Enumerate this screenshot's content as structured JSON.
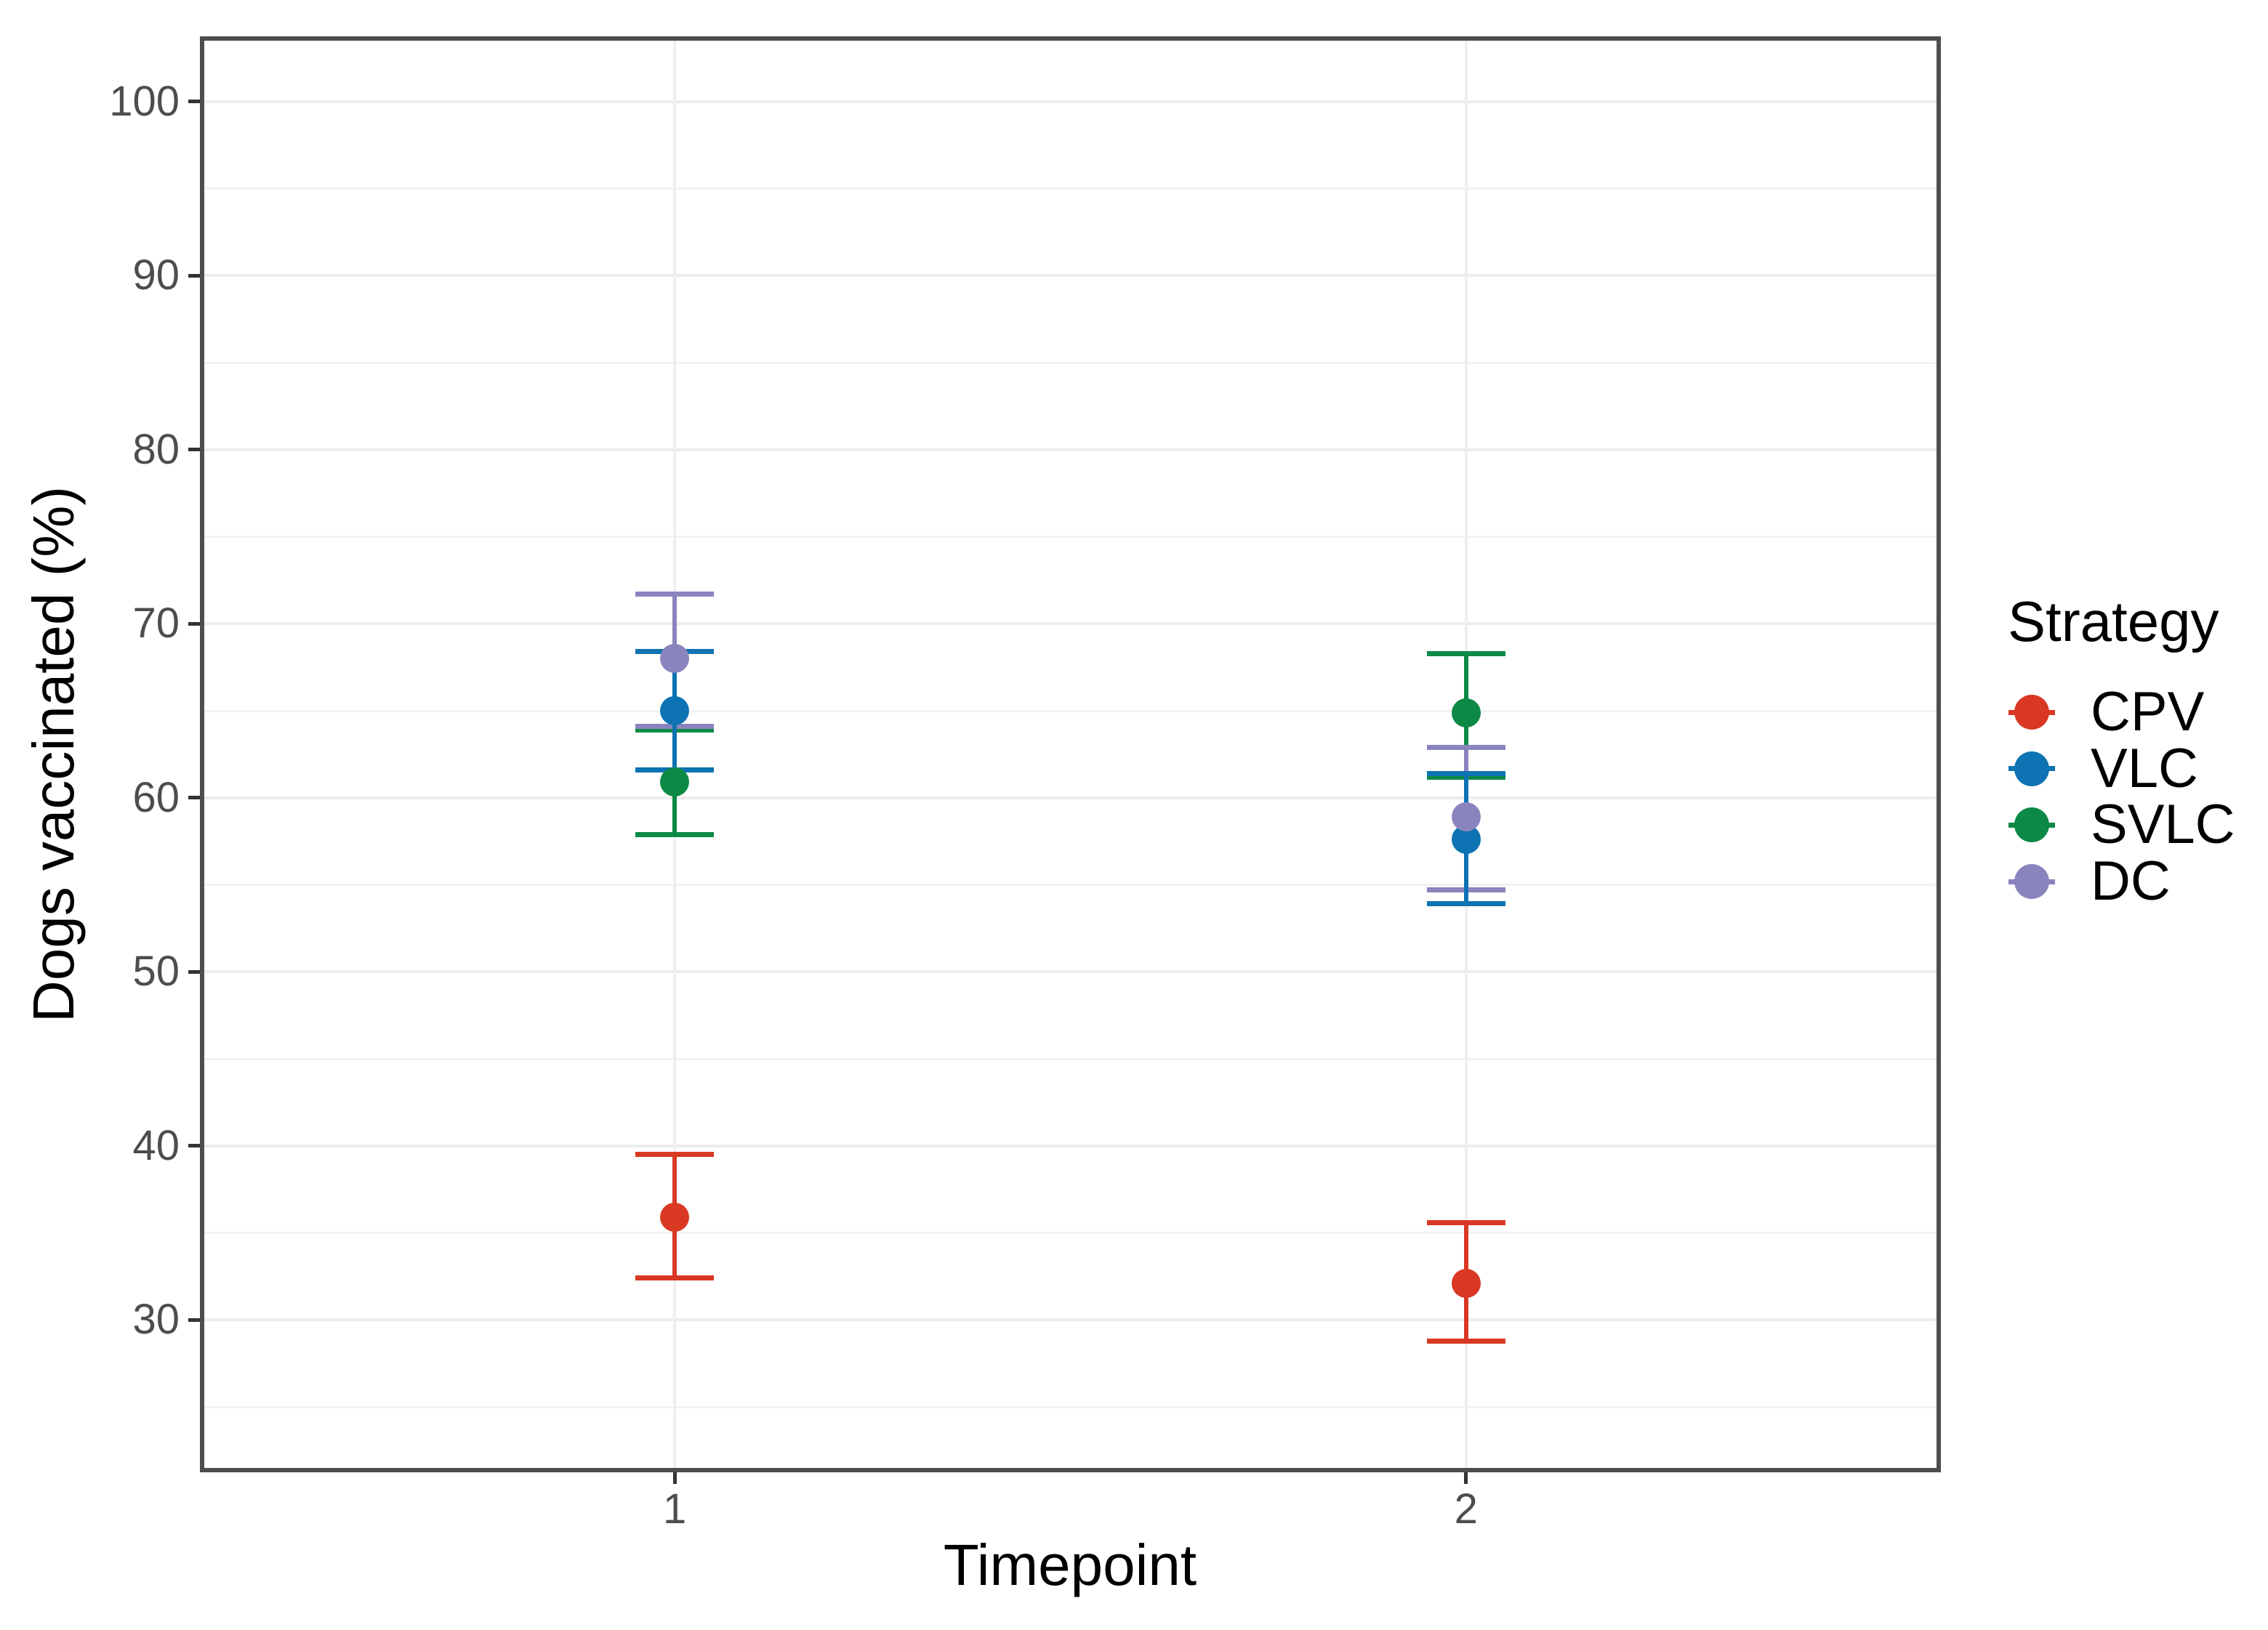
{
  "chart_data": {
    "type": "scatter",
    "title": "",
    "xlabel": "Timepoint",
    "ylabel": "Dogs vaccinated (%)",
    "legend_title": "Strategy",
    "legend_position": "right",
    "grid": "on",
    "x_ticks": [
      {
        "t": 1,
        "label": "1"
      },
      {
        "t": 2,
        "label": "2"
      }
    ],
    "xlim": [
      0.4,
      2.6
    ],
    "y_major_ticks": [
      {
        "v": 100,
        "label": "100"
      },
      {
        "v": 90,
        "label": "90"
      },
      {
        "v": 80,
        "label": "80"
      },
      {
        "v": 70,
        "label": "70"
      },
      {
        "v": 60,
        "label": "60"
      },
      {
        "v": 50,
        "label": "50"
      },
      {
        "v": 40,
        "label": "40"
      },
      {
        "v": 30,
        "label": "30"
      }
    ],
    "y_minor_ticks": [
      95,
      85,
      75,
      65,
      55,
      45,
      35,
      25
    ],
    "ylim": [
      21.25,
      103.75
    ],
    "series": [
      {
        "name": "CPV",
        "color": "#D93823",
        "points": [
          {
            "x": 1,
            "y": 35.9,
            "lo": 32.4,
            "hi": 39.5
          },
          {
            "x": 2,
            "y": 32.1,
            "lo": 28.8,
            "hi": 35.6
          }
        ]
      },
      {
        "name": "VLC",
        "color": "#0D73B2",
        "points": [
          {
            "x": 1,
            "y": 65.0,
            "lo": 61.6,
            "hi": 68.4
          },
          {
            "x": 2,
            "y": 57.6,
            "lo": 53.9,
            "hi": 61.4
          }
        ]
      },
      {
        "name": "SVLC",
        "color": "#0C8A45",
        "points": [
          {
            "x": 1,
            "y": 60.9,
            "lo": 57.9,
            "hi": 63.9
          },
          {
            "x": 2,
            "y": 64.9,
            "lo": 61.2,
            "hi": 68.3
          }
        ]
      },
      {
        "name": "DC",
        "color": "#8A84BE",
        "points": [
          {
            "x": 1,
            "y": 68.0,
            "lo": 64.1,
            "hi": 71.7
          },
          {
            "x": 2,
            "y": 58.9,
            "lo": 54.7,
            "hi": 62.9
          }
        ]
      }
    ]
  },
  "style_colors": {
    "panel_border": "#4D4D4D",
    "axis_text": "#4D4D4D",
    "tick_mark": "#333333",
    "grid_major": "#ECECEC",
    "grid_minor": "#F2F2F2",
    "background": "#FFFFFF"
  }
}
